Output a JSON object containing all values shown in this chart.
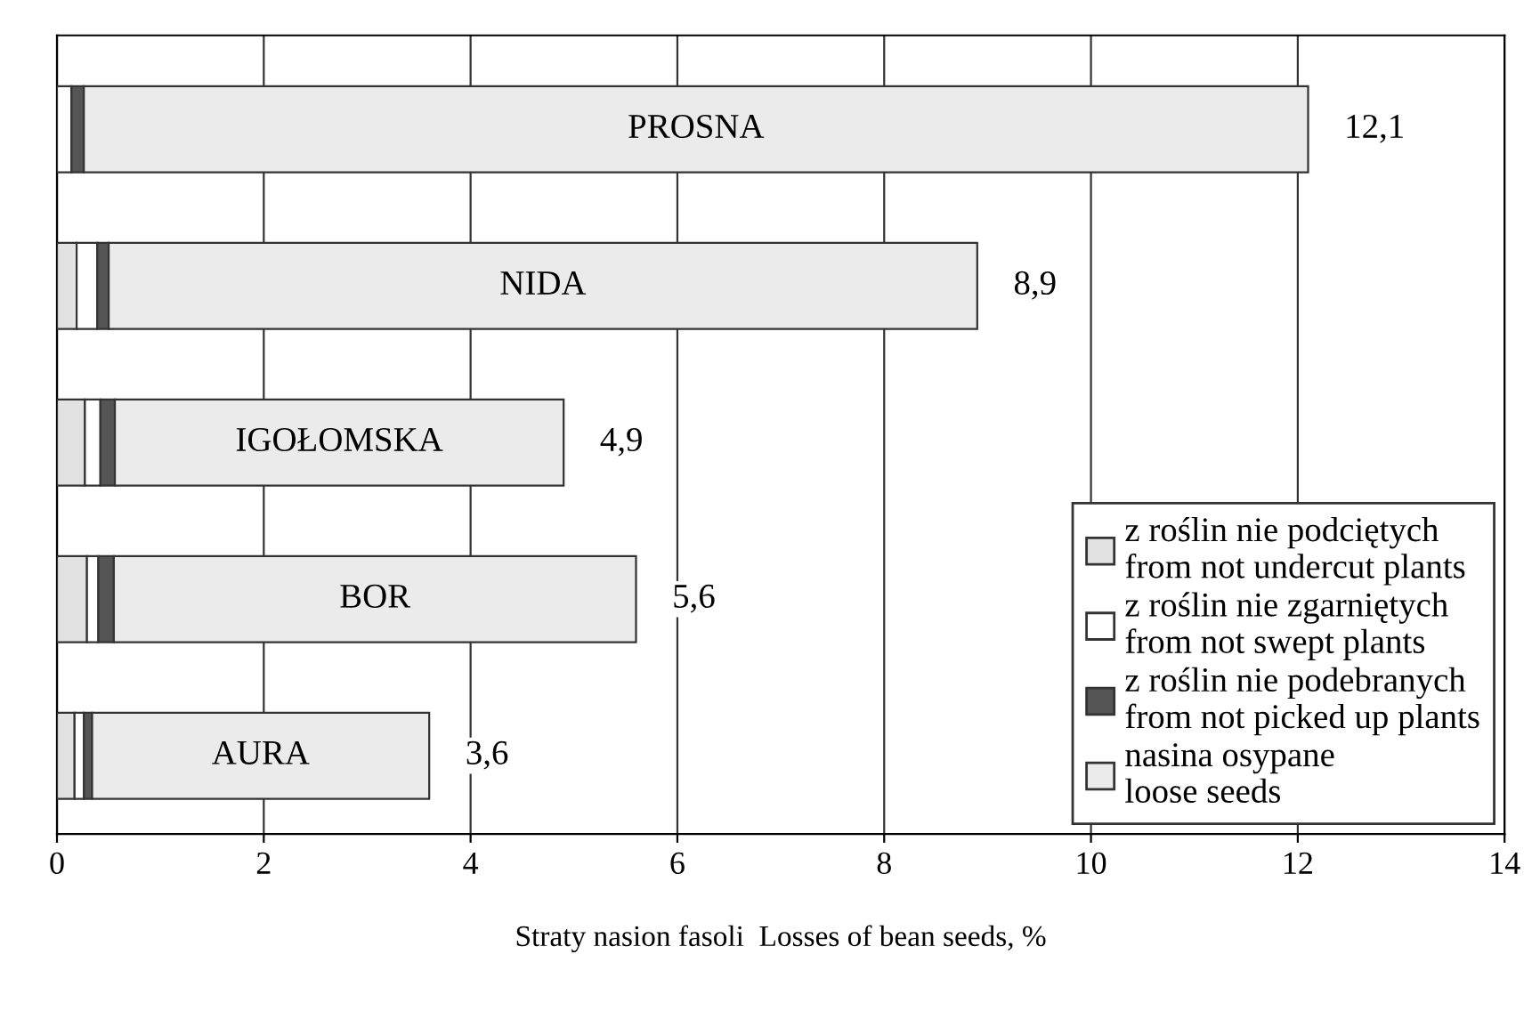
{
  "chart_data": {
    "type": "bar",
    "orientation": "horizontal",
    "stacked": true,
    "xlabel": "Straty nasion fasoli  Losses of bean seeds, %",
    "categories": [
      "PROSNA",
      "NIDA",
      "IGOŁOMSKA",
      "BOR",
      "AURA"
    ],
    "series": [
      {
        "name": "z roślin nie podciętych\nfrom not undercut plants",
        "color": "#e2e2e2",
        "values": [
          0,
          0.19,
          0.27,
          0.29,
          0.17
        ]
      },
      {
        "name": "z roślin nie zgarniętych\nfrom not swept plants",
        "color": "#ffffff",
        "values": [
          0.14,
          0.2,
          0.15,
          0.11,
          0.09
        ]
      },
      {
        "name": "z roślin nie podebranych\nfrom not picked up plants",
        "color": "#555555",
        "values": [
          0.12,
          0.11,
          0.14,
          0.15,
          0.08
        ]
      },
      {
        "name": "nasina osypane\nloose seeds",
        "color": "#ebebeb",
        "values": [
          11.84,
          8.4,
          4.34,
          5.05,
          3.26
        ]
      }
    ],
    "totals": [
      "12,1",
      "8,9",
      "4,9",
      "5,6",
      "3,6"
    ],
    "xlim": [
      0,
      14
    ],
    "xticks": [
      0,
      2,
      4,
      6,
      8,
      10,
      12,
      14
    ],
    "grid": "x",
    "legend": "lower right",
    "tick_labels": "x"
  }
}
